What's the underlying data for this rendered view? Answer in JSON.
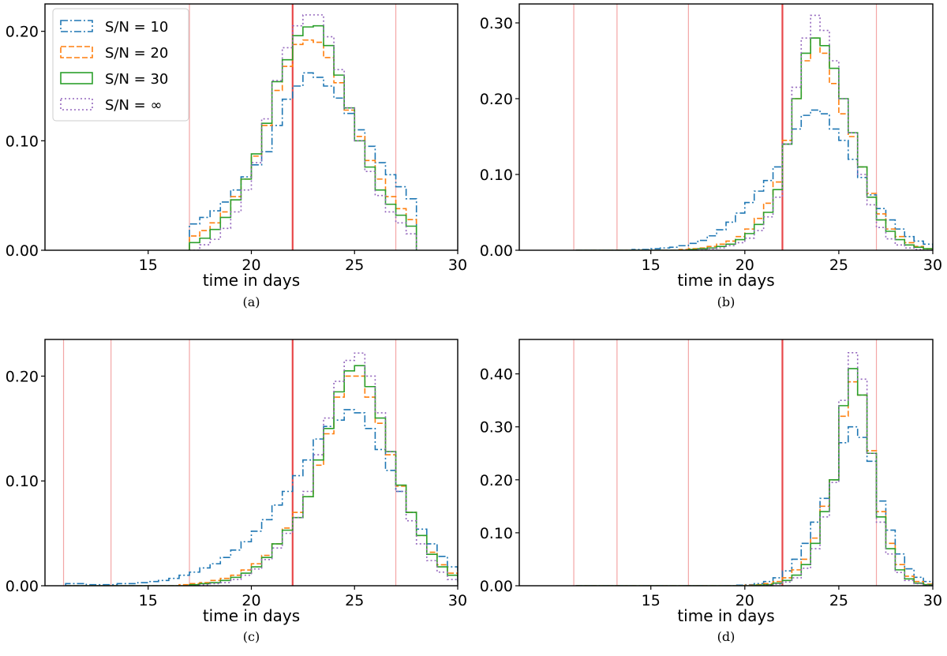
{
  "colors": {
    "series": [
      "#1f77b4",
      "#ff7f0e",
      "#2ca02c",
      "#9467bd"
    ],
    "vline_strong": "#e8484a",
    "vline_light": "#f3a6a6"
  },
  "chart_data": [
    {
      "type": "histogram",
      "caption": "(a)",
      "xlabel": "time in days",
      "xlim": [
        10,
        30
      ],
      "ylim": [
        0,
        0.225
      ],
      "xticks": [
        15,
        20,
        25,
        30
      ],
      "yticks": [
        "0.00",
        "0.10",
        "0.20"
      ],
      "ytick_values": [
        0,
        0.1,
        0.2
      ],
      "vlines": [
        17,
        27
      ],
      "vline_strong": 22,
      "legend": {
        "placement": "upper-left",
        "entries": [
          "S/N = 10",
          "S/N = 20",
          "S/N = 30",
          "S/N = ∞"
        ]
      },
      "bin_start": 17,
      "bin_width": 0.5,
      "series": [
        {
          "name": "S/N = 10",
          "style": "dashdot",
          "values": [
            0.024,
            0.03,
            0.036,
            0.044,
            0.055,
            0.067,
            0.078,
            0.09,
            0.114,
            0.138,
            0.15,
            0.162,
            0.158,
            0.15,
            0.139,
            0.125,
            0.11,
            0.095,
            0.08,
            0.069,
            0.058,
            0.047
          ]
        },
        {
          "name": "S/N = 20",
          "style": "dashed",
          "values": [
            0.013,
            0.018,
            0.025,
            0.035,
            0.049,
            0.065,
            0.086,
            0.114,
            0.146,
            0.168,
            0.188,
            0.192,
            0.19,
            0.176,
            0.153,
            0.128,
            0.104,
            0.082,
            0.065,
            0.049,
            0.038,
            0.028
          ]
        },
        {
          "name": "S/N = 30",
          "style": "solid",
          "values": [
            0.007,
            0.011,
            0.019,
            0.03,
            0.046,
            0.065,
            0.088,
            0.116,
            0.154,
            0.174,
            0.196,
            0.204,
            0.205,
            0.187,
            0.16,
            0.13,
            0.1,
            0.076,
            0.055,
            0.042,
            0.032,
            0.022
          ]
        },
        {
          "name": "S/N = ∞",
          "style": "dotted",
          "values": [
            0.0,
            0.005,
            0.01,
            0.02,
            0.035,
            0.055,
            0.08,
            0.12,
            0.155,
            0.185,
            0.205,
            0.215,
            0.215,
            0.195,
            0.165,
            0.13,
            0.1,
            0.072,
            0.05,
            0.035,
            0.025,
            0.015
          ]
        }
      ]
    },
    {
      "type": "histogram",
      "caption": "(b)",
      "xlabel": "time in days",
      "xlim": [
        8,
        30
      ],
      "ylim": [
        0,
        0.325
      ],
      "xticks": [
        15,
        20,
        25,
        30
      ],
      "yticks": [
        "0.00",
        "0.10",
        "0.20",
        "0.30"
      ],
      "ytick_values": [
        0,
        0.1,
        0.2,
        0.3
      ],
      "vlines": [
        10.9,
        13.2,
        17,
        27
      ],
      "vline_strong": 22,
      "bin_start": 11,
      "bin_width": 0.5,
      "series": [
        {
          "name": "S/N = 10",
          "style": "dashdot",
          "values": [
            0,
            0,
            0,
            0,
            0,
            0,
            0.001,
            0.001,
            0.002,
            0.003,
            0.004,
            0.006,
            0.009,
            0.013,
            0.019,
            0.027,
            0.037,
            0.049,
            0.063,
            0.078,
            0.092,
            0.11,
            0.14,
            0.16,
            0.178,
            0.185,
            0.18,
            0.16,
            0.145,
            0.12,
            0.096,
            0.073,
            0.055,
            0.04,
            0.028,
            0.018,
            0.012,
            0.008,
            0.004,
            0.002,
            0.001,
            0
          ]
        },
        {
          "name": "S/N = 20",
          "style": "dashed",
          "values": [
            0,
            0,
            0,
            0,
            0,
            0,
            0,
            0,
            0,
            0,
            0,
            0.001,
            0.002,
            0.003,
            0.005,
            0.008,
            0.012,
            0.018,
            0.028,
            0.042,
            0.062,
            0.09,
            0.145,
            0.2,
            0.25,
            0.28,
            0.26,
            0.22,
            0.18,
            0.15,
            0.11,
            0.075,
            0.048,
            0.028,
            0.018,
            0.01,
            0.005,
            0.002,
            0.001,
            0,
            0,
            0
          ]
        },
        {
          "name": "S/N = 30",
          "style": "solid",
          "values": [
            0,
            0,
            0,
            0,
            0,
            0,
            0,
            0,
            0,
            0,
            0,
            0,
            0.001,
            0.002,
            0.003,
            0.005,
            0.008,
            0.014,
            0.022,
            0.034,
            0.05,
            0.08,
            0.14,
            0.2,
            0.26,
            0.28,
            0.27,
            0.24,
            0.2,
            0.155,
            0.11,
            0.07,
            0.04,
            0.025,
            0.014,
            0.007,
            0.004,
            0.002,
            0,
            0,
            0,
            0
          ]
        },
        {
          "name": "S/N = ∞",
          "style": "dotted",
          "values": [
            0,
            0,
            0,
            0,
            0,
            0,
            0,
            0,
            0,
            0,
            0,
            0,
            0,
            0.001,
            0.002,
            0.003,
            0.006,
            0.01,
            0.016,
            0.026,
            0.044,
            0.07,
            0.14,
            0.215,
            0.28,
            0.31,
            0.29,
            0.25,
            0.2,
            0.155,
            0.1,
            0.06,
            0.03,
            0.015,
            0.007,
            0.003,
            0.001,
            0,
            0,
            0,
            0,
            0
          ]
        }
      ]
    },
    {
      "type": "histogram",
      "caption": "(c)",
      "xlabel": "time in days",
      "xlim": [
        10,
        30
      ],
      "ylim": [
        0,
        0.235
      ],
      "xticks": [
        15,
        20,
        25,
        30
      ],
      "yticks": [
        "0.00",
        "0.10",
        "0.20"
      ],
      "ytick_values": [
        0,
        0.1,
        0.2
      ],
      "vlines": [
        10.9,
        13.2,
        17,
        27
      ],
      "vline_strong": 22,
      "bin_start": 11,
      "bin_width": 0.5,
      "series": [
        {
          "name": "S/N = 10",
          "style": "dashdot",
          "values": [
            0.002,
            0.002,
            0.001,
            0.001,
            0.001,
            0.002,
            0.002,
            0.003,
            0.004,
            0.005,
            0.007,
            0.01,
            0.013,
            0.017,
            0.021,
            0.027,
            0.034,
            0.042,
            0.052,
            0.063,
            0.077,
            0.09,
            0.105,
            0.12,
            0.14,
            0.152,
            0.158,
            0.168,
            0.165,
            0.15,
            0.13,
            0.11,
            0.09,
            0.07,
            0.054,
            0.04,
            0.028,
            0.018,
            0.012,
            0.007,
            0.003,
            0.001
          ]
        },
        {
          "name": "S/N = 20",
          "style": "dashed",
          "values": [
            0,
            0,
            0,
            0,
            0,
            0,
            0,
            0,
            0,
            0,
            0,
            0.001,
            0.002,
            0.003,
            0.005,
            0.007,
            0.01,
            0.015,
            0.021,
            0.029,
            0.04,
            0.055,
            0.07,
            0.085,
            0.115,
            0.145,
            0.18,
            0.2,
            0.2,
            0.18,
            0.155,
            0.125,
            0.095,
            0.07,
            0.048,
            0.032,
            0.02,
            0.012,
            0.007,
            0.004,
            0.002,
            0
          ]
        },
        {
          "name": "S/N = 30",
          "style": "solid",
          "values": [
            0,
            0,
            0,
            0,
            0,
            0,
            0,
            0,
            0,
            0,
            0,
            0,
            0.001,
            0.002,
            0.003,
            0.005,
            0.008,
            0.012,
            0.018,
            0.027,
            0.04,
            0.053,
            0.065,
            0.085,
            0.12,
            0.15,
            0.185,
            0.205,
            0.21,
            0.19,
            0.16,
            0.128,
            0.096,
            0.07,
            0.048,
            0.03,
            0.018,
            0.01,
            0.005,
            0.002,
            0.001,
            0
          ]
        },
        {
          "name": "S/N = ∞",
          "style": "dotted",
          "values": [
            0,
            0,
            0,
            0,
            0,
            0,
            0,
            0,
            0,
            0,
            0,
            0,
            0,
            0.001,
            0.002,
            0.003,
            0.006,
            0.01,
            0.016,
            0.025,
            0.036,
            0.05,
            0.065,
            0.09,
            0.125,
            0.16,
            0.195,
            0.215,
            0.222,
            0.2,
            0.165,
            0.128,
            0.09,
            0.062,
            0.04,
            0.024,
            0.013,
            0.006,
            0.003,
            0.001,
            0,
            0
          ]
        }
      ]
    },
    {
      "type": "histogram",
      "caption": "(d)",
      "xlabel": "time in days",
      "xlim": [
        8,
        30
      ],
      "ylim": [
        0,
        0.465
      ],
      "xticks": [
        15,
        20,
        25,
        30
      ],
      "yticks": [
        "0.00",
        "0.10",
        "0.20",
        "0.30",
        "0.40"
      ],
      "ytick_values": [
        0,
        0.1,
        0.2,
        0.3,
        0.4
      ],
      "vlines": [
        10.9,
        13.2,
        17,
        27
      ],
      "vline_strong": 22,
      "bin_start": 11,
      "bin_width": 0.5,
      "series": [
        {
          "name": "S/N = 10",
          "style": "dashdot",
          "values": [
            0,
            0,
            0,
            0,
            0,
            0,
            0,
            0,
            0,
            0,
            0,
            0,
            0,
            0,
            0,
            0,
            0,
            0.001,
            0.002,
            0.004,
            0.008,
            0.015,
            0.028,
            0.05,
            0.08,
            0.12,
            0.165,
            0.2,
            0.27,
            0.3,
            0.28,
            0.235,
            0.16,
            0.105,
            0.06,
            0.032,
            0.016,
            0.008,
            0.004,
            0.002,
            0.001,
            0
          ]
        },
        {
          "name": "S/N = 20",
          "style": "dashed",
          "values": [
            0,
            0,
            0,
            0,
            0,
            0,
            0,
            0,
            0,
            0,
            0,
            0,
            0,
            0,
            0,
            0,
            0,
            0,
            0.001,
            0.002,
            0.004,
            0.008,
            0.015,
            0.03,
            0.05,
            0.09,
            0.15,
            0.2,
            0.32,
            0.385,
            0.36,
            0.255,
            0.14,
            0.08,
            0.04,
            0.018,
            0.008,
            0.003,
            0.001,
            0,
            0,
            0
          ]
        },
        {
          "name": "S/N = 30",
          "style": "solid",
          "values": [
            0,
            0,
            0,
            0,
            0,
            0,
            0,
            0,
            0,
            0,
            0,
            0,
            0,
            0,
            0,
            0,
            0,
            0,
            0,
            0.001,
            0.002,
            0.005,
            0.01,
            0.02,
            0.04,
            0.08,
            0.14,
            0.2,
            0.34,
            0.41,
            0.36,
            0.25,
            0.13,
            0.07,
            0.03,
            0.013,
            0.005,
            0.002,
            0,
            0,
            0,
            0
          ]
        },
        {
          "name": "S/N = ∞",
          "style": "dotted",
          "values": [
            0,
            0,
            0,
            0,
            0,
            0,
            0,
            0,
            0,
            0,
            0,
            0,
            0,
            0,
            0,
            0,
            0,
            0,
            0,
            0,
            0.001,
            0.003,
            0.007,
            0.015,
            0.033,
            0.07,
            0.13,
            0.195,
            0.35,
            0.44,
            0.39,
            0.25,
            0.12,
            0.06,
            0.025,
            0.01,
            0.004,
            0.001,
            0,
            0,
            0,
            0
          ]
        }
      ]
    }
  ]
}
